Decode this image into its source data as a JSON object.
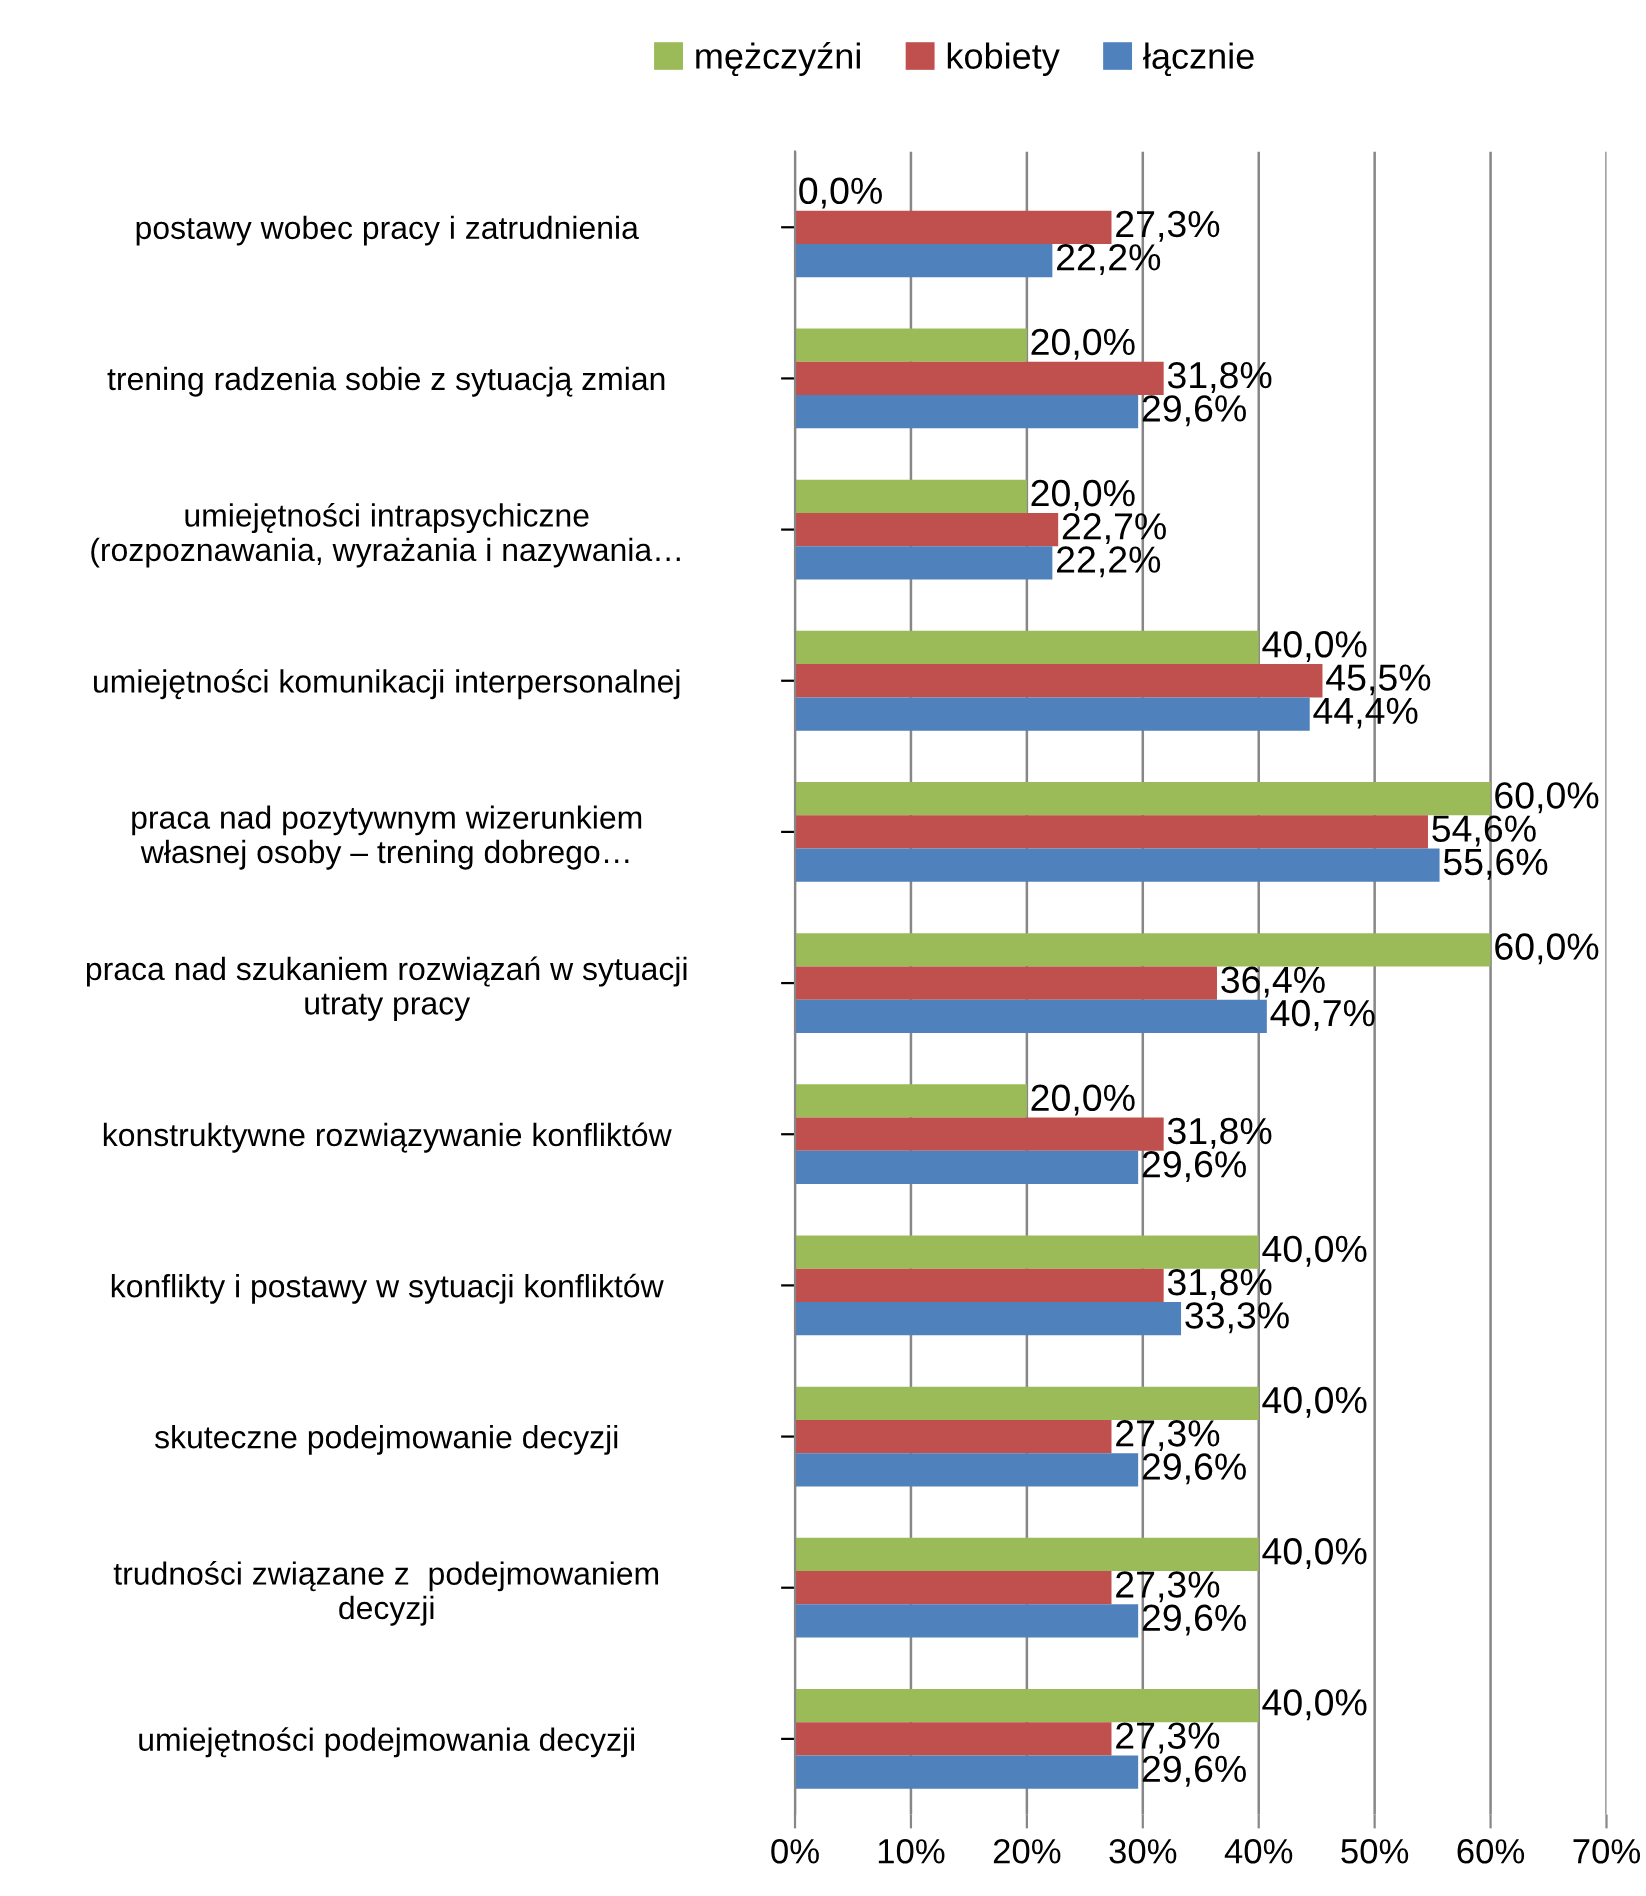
{
  "chart_data": {
    "type": "bar",
    "orientation": "horizontal",
    "categories": [
      "postawy wobec pracy i zatrudnienia",
      "trening radzenia sobie z sytuacją zmian",
      "umiejętności intrapsychiczne\n(rozpoznawania, wyrażania i nazywania…",
      "umiejętności komunikacji interpersonalnej",
      "praca nad pozytywnym wizerunkiem\nwłasnej osoby – trening dobrego…",
      "praca nad szukaniem rozwiązań w sytuacji\nutraty pracy",
      "konstruktywne rozwiązywanie konfliktów",
      "konflikty i postawy w sytuacji konfliktów",
      "skuteczne podejmowanie decyzji",
      "trudności związane z  podejmowaniem\ndecyzji",
      "umiejętności podejmowania decyzji"
    ],
    "series": [
      {
        "name": "mężczyźni",
        "color": "#9bbb59",
        "values": [
          0.0,
          20.0,
          20.0,
          40.0,
          60.0,
          60.0,
          20.0,
          40.0,
          40.0,
          40.0,
          40.0
        ],
        "value_labels": [
          "0,0%",
          "20,0%",
          "20,0%",
          "40,0%",
          "60,0%",
          "60,0%",
          "20,0%",
          "40,0%",
          "40,0%",
          "40,0%",
          "40,0%"
        ]
      },
      {
        "name": "kobiety",
        "color": "#c0504d",
        "values": [
          27.3,
          31.8,
          22.7,
          45.5,
          54.6,
          36.4,
          31.8,
          31.8,
          27.3,
          27.3,
          27.3
        ],
        "value_labels": [
          "27,3%",
          "31,8%",
          "22,7%",
          "45,5%",
          "54,6%",
          "36,4%",
          "31,8%",
          "31,8%",
          "27,3%",
          "27,3%",
          "27,3%"
        ]
      },
      {
        "name": "łącznie",
        "color": "#4f81bd",
        "values": [
          22.2,
          29.6,
          22.2,
          44.4,
          55.6,
          40.7,
          29.6,
          33.3,
          29.6,
          29.6,
          29.6
        ],
        "value_labels": [
          "22,2%",
          "29,6%",
          "22,2%",
          "44,4%",
          "55,6%",
          "40,7%",
          "29,6%",
          "33,3%",
          "29,6%",
          "29,6%",
          "29,6%"
        ]
      }
    ],
    "xlim": [
      0,
      70
    ],
    "xticks": [
      {
        "value": 0,
        "label": "0%"
      },
      {
        "value": 10,
        "label": "10%"
      },
      {
        "value": 20,
        "label": "20%"
      },
      {
        "value": 30,
        "label": "30%"
      },
      {
        "value": 40,
        "label": "40%"
      },
      {
        "value": 50,
        "label": "50%"
      },
      {
        "value": 60,
        "label": "60%"
      },
      {
        "value": 70,
        "label": "70%"
      }
    ],
    "grid": "x",
    "legend": "top"
  }
}
